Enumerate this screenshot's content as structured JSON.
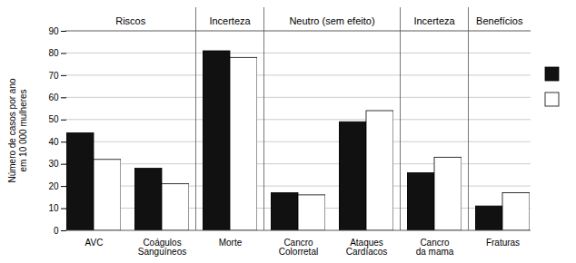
{
  "chart_data": {
    "type": "bar",
    "categories": [
      "AVC",
      "Coágulos\nSanguíneos",
      "Morte",
      "Cancro\nColorretal",
      "Ataques\nCardíacos",
      "Cancro\nda mama",
      "Fraturas"
    ],
    "series": [
      {
        "color": "#111111",
        "values": [
          44,
          28,
          81,
          17,
          49,
          26,
          11
        ]
      },
      {
        "color": "#ffffff",
        "values": [
          32,
          21,
          78,
          16,
          54,
          33,
          17
        ]
      }
    ],
    "y_label": "Número de casos por ano\nem 10 000 mulheres",
    "ylim": [
      0,
      90
    ],
    "yticks": [
      0,
      10,
      20,
      30,
      40,
      50,
      60,
      70,
      80,
      90
    ],
    "grid": true,
    "legend": "right",
    "annotations": [
      {
        "text": "Riscos",
        "categories": [
          "AVC",
          "Coágulos\nSanguíneos"
        ]
      },
      {
        "text": "Incerteza",
        "categories": [
          "Morte"
        ]
      },
      {
        "text": "Neutro (sem efeito)",
        "categories": [
          "Cancro\nColorretal",
          "Ataques\nCardíacos"
        ]
      },
      {
        "text": "Incerteza",
        "categories": [
          "Cancro\nda mama"
        ]
      },
      {
        "text": "Benefícios",
        "categories": [
          "Fraturas"
        ]
      }
    ]
  }
}
